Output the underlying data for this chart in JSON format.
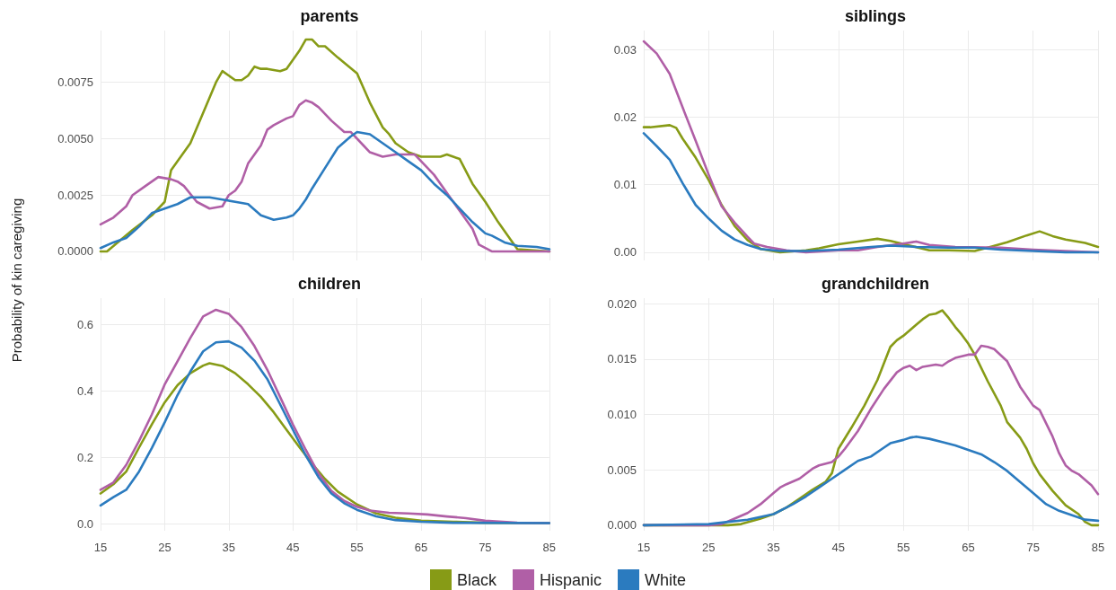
{
  "chart_data": [
    {
      "type": "line",
      "title": "parents",
      "ylabel": "Probability of kin caregiving",
      "legend": "bottom",
      "tick_labels": "y",
      "grid": true,
      "xlim": [
        15,
        85
      ],
      "xticks": [
        15,
        25,
        35,
        45,
        55,
        65,
        75,
        85
      ],
      "ylim": [
        -0.0004,
        0.0098
      ],
      "yticks": [
        {
          "value": 0,
          "label": "0.0000"
        },
        {
          "value": 0.0025,
          "label": "0.0025"
        },
        {
          "value": 0.005,
          "label": "0.0050"
        },
        {
          "value": 0.0075,
          "label": "0.0075"
        }
      ],
      "series": [
        {
          "name": "Black",
          "color": "#879b16",
          "x": [
            15,
            16,
            20,
            23,
            25,
            26,
            29,
            33,
            34,
            36,
            37,
            38,
            39,
            40,
            41,
            43,
            44,
            46,
            47,
            48,
            49,
            50,
            52,
            55,
            57,
            59,
            60,
            61,
            63,
            65,
            66,
            68,
            69,
            70,
            71,
            73,
            75,
            77,
            79,
            80,
            85
          ],
          "values": [
            0,
            0,
            0.00095,
            0.0016,
            0.0022,
            0.0036,
            0.0048,
            0.0075,
            0.008,
            0.0076,
            0.0076,
            0.0078,
            0.0082,
            0.0081,
            0.0081,
            0.008,
            0.0081,
            0.0089,
            0.0094,
            0.0094,
            0.0091,
            0.0091,
            0.0086,
            0.0079,
            0.0066,
            0.0055,
            0.0052,
            0.0048,
            0.0044,
            0.0042,
            0.0042,
            0.0042,
            0.0043,
            0.0042,
            0.0041,
            0.003,
            0.0022,
            0.0013,
            0.0005,
            0.0001,
            0
          ]
        },
        {
          "name": "Hispanic",
          "color": "#b05fa6",
          "x": [
            15,
            17,
            19,
            20,
            22,
            24,
            26,
            27,
            28,
            30,
            32,
            34,
            35,
            36,
            37,
            38,
            40,
            41,
            42,
            44,
            45,
            46,
            47,
            48,
            49,
            50,
            51,
            53,
            54,
            56,
            57,
            59,
            61,
            63,
            64,
            65,
            67,
            69,
            71,
            73,
            74,
            76,
            85
          ],
          "values": [
            0.0012,
            0.0015,
            0.002,
            0.0025,
            0.0029,
            0.0033,
            0.0032,
            0.0031,
            0.0029,
            0.0022,
            0.0019,
            0.002,
            0.0025,
            0.0027,
            0.0031,
            0.0039,
            0.0047,
            0.0054,
            0.0056,
            0.0059,
            0.006,
            0.0065,
            0.0067,
            0.0066,
            0.0064,
            0.0061,
            0.0058,
            0.0053,
            0.0053,
            0.0047,
            0.0044,
            0.0042,
            0.0043,
            0.0043,
            0.0043,
            0.004,
            0.0034,
            0.0026,
            0.0018,
            0.001,
            0.0003,
            0,
            0
          ]
        },
        {
          "name": "White",
          "color": "#2b7bbf",
          "x": [
            15,
            17,
            19,
            21,
            23,
            25,
            27,
            29,
            30,
            32,
            34,
            36,
            38,
            40,
            42,
            44,
            45,
            46,
            47,
            48,
            50,
            52,
            54,
            55,
            57,
            59,
            61,
            63,
            65,
            67,
            69,
            71,
            73,
            75,
            76,
            78,
            80,
            83,
            85
          ],
          "values": [
            0.00015,
            0.0004,
            0.0006,
            0.0011,
            0.0017,
            0.0019,
            0.0021,
            0.0024,
            0.0024,
            0.0024,
            0.0023,
            0.0022,
            0.0021,
            0.0016,
            0.0014,
            0.0015,
            0.0016,
            0.0019,
            0.0023,
            0.0028,
            0.0037,
            0.0046,
            0.0051,
            0.0053,
            0.0052,
            0.0048,
            0.0044,
            0.004,
            0.0036,
            0.003,
            0.0025,
            0.0019,
            0.0013,
            0.0008,
            0.0007,
            0.0004,
            0.00025,
            0.0002,
            0.0001
          ]
        }
      ]
    },
    {
      "type": "line",
      "title": "siblings",
      "legend": "bottom",
      "tick_labels": "y",
      "grid": true,
      "xlim": [
        15,
        85
      ],
      "xticks": [
        15,
        25,
        35,
        45,
        55,
        65,
        75,
        85
      ],
      "ylim": [
        -0.0012,
        0.0328
      ],
      "yticks": [
        {
          "value": 0,
          "label": "0.00"
        },
        {
          "value": 0.01,
          "label": "0.01"
        },
        {
          "value": 0.02,
          "label": "0.02"
        },
        {
          "value": 0.03,
          "label": "0.03"
        }
      ],
      "series": [
        {
          "name": "Black",
          "color": "#879b16",
          "x": [
            15,
            16,
            19,
            20,
            21,
            23,
            25,
            27,
            29,
            31,
            33,
            36,
            40,
            42,
            45,
            48,
            51,
            53,
            56,
            59,
            62,
            66,
            68,
            71,
            74,
            76,
            78,
            80,
            83,
            85
          ],
          "values": [
            0.0185,
            0.0185,
            0.0188,
            0.0184,
            0.0168,
            0.014,
            0.0107,
            0.007,
            0.0039,
            0.0018,
            0.0005,
            0,
            0.0003,
            0.0006,
            0.0012,
            0.0016,
            0.002,
            0.0017,
            0.001,
            0.0003,
            0.0003,
            0.0002,
            0.0007,
            0.0015,
            0.0025,
            0.0031,
            0.0024,
            0.0019,
            0.0014,
            0.0008
          ]
        },
        {
          "name": "Hispanic",
          "color": "#b05fa6",
          "x": [
            15,
            17,
            19,
            21,
            23,
            25,
            27,
            29,
            31,
            32,
            34,
            37,
            40,
            45,
            48,
            51,
            55,
            57,
            59,
            63,
            70,
            75,
            80,
            85
          ],
          "values": [
            0.0312,
            0.0294,
            0.0264,
            0.0214,
            0.0165,
            0.0115,
            0.0068,
            0.0044,
            0.0023,
            0.0013,
            0.0008,
            0.0003,
            0,
            0.0003,
            0.0003,
            0.0008,
            0.0013,
            0.0016,
            0.0011,
            0.0008,
            0.0007,
            0.0004,
            0.0002,
            0
          ]
        },
        {
          "name": "White",
          "color": "#2b7bbf",
          "x": [
            15,
            17,
            19,
            21,
            23,
            25,
            27,
            29,
            31,
            33,
            36,
            40,
            45,
            50,
            53,
            57,
            62,
            66,
            70,
            75,
            80,
            85
          ],
          "values": [
            0.0176,
            0.0157,
            0.0137,
            0.0102,
            0.007,
            0.005,
            0.0032,
            0.0019,
            0.0011,
            0.0005,
            0.0002,
            0.0002,
            0.0004,
            0.0008,
            0.001,
            0.0008,
            0.0007,
            0.0007,
            0.0004,
            0.0002,
            0,
            0
          ]
        }
      ]
    },
    {
      "type": "line",
      "title": "children",
      "legend": "bottom",
      "grid": true,
      "xlim": [
        15,
        85
      ],
      "xticks": [
        15,
        25,
        35,
        45,
        55,
        65,
        75,
        85
      ],
      "ylim": [
        -0.02,
        0.68
      ],
      "yticks": [
        {
          "value": 0,
          "label": "0.0"
        },
        {
          "value": 0.2,
          "label": "0.2"
        },
        {
          "value": 0.4,
          "label": "0.4"
        },
        {
          "value": 0.6,
          "label": "0.6"
        }
      ],
      "series": [
        {
          "name": "Black",
          "color": "#879b16",
          "x": [
            15,
            17,
            19,
            21,
            23,
            25,
            27,
            29,
            31,
            32,
            34,
            36,
            38,
            40,
            42,
            44,
            46,
            48,
            50,
            52,
            55,
            58,
            61,
            65,
            70,
            75,
            85
          ],
          "values": [
            0.092,
            0.12,
            0.158,
            0.23,
            0.3,
            0.366,
            0.418,
            0.454,
            0.477,
            0.484,
            0.476,
            0.454,
            0.421,
            0.383,
            0.337,
            0.284,
            0.232,
            0.182,
            0.136,
            0.098,
            0.059,
            0.032,
            0.019,
            0.01,
            0.007,
            0.004,
            0.003
          ]
        },
        {
          "name": "Hispanic",
          "color": "#b05fa6",
          "x": [
            15,
            17,
            19,
            21,
            23,
            25,
            27,
            29,
            31,
            33,
            35,
            37,
            39,
            41,
            43,
            45,
            47,
            49,
            51,
            53,
            55,
            57,
            60,
            63,
            66,
            69,
            72,
            75,
            80,
            85
          ],
          "values": [
            0.103,
            0.125,
            0.178,
            0.25,
            0.33,
            0.42,
            0.49,
            0.56,
            0.625,
            0.645,
            0.633,
            0.593,
            0.536,
            0.465,
            0.383,
            0.3,
            0.224,
            0.152,
            0.1,
            0.07,
            0.052,
            0.041,
            0.034,
            0.032,
            0.029,
            0.023,
            0.018,
            0.01,
            0.004,
            0.003
          ]
        },
        {
          "name": "White",
          "color": "#2b7bbf",
          "x": [
            15,
            17,
            19,
            21,
            23,
            25,
            27,
            29,
            31,
            33,
            35,
            37,
            39,
            41,
            43,
            45,
            47,
            49,
            51,
            53,
            55,
            58,
            61,
            65,
            70,
            85
          ],
          "values": [
            0.056,
            0.081,
            0.103,
            0.158,
            0.229,
            0.306,
            0.388,
            0.459,
            0.52,
            0.547,
            0.55,
            0.531,
            0.492,
            0.437,
            0.361,
            0.284,
            0.207,
            0.141,
            0.092,
            0.063,
            0.043,
            0.023,
            0.012,
            0.007,
            0.004,
            0.003
          ]
        }
      ]
    },
    {
      "type": "line",
      "title": "grandchildren",
      "legend": "bottom",
      "grid": true,
      "xlim": [
        15,
        85
      ],
      "xticks": [
        15,
        25,
        35,
        45,
        55,
        65,
        75,
        85
      ],
      "ylim": [
        -0.0005,
        0.0205
      ],
      "yticks": [
        {
          "value": 0,
          "label": "0.000"
        },
        {
          "value": 0.005,
          "label": "0.005"
        },
        {
          "value": 0.01,
          "label": "0.010"
        },
        {
          "value": 0.015,
          "label": "0.015"
        },
        {
          "value": 0.02,
          "label": "0.020"
        }
      ],
      "series": [
        {
          "name": "Black",
          "color": "#879b16",
          "x": [
            15,
            25,
            28,
            30,
            33,
            35,
            37,
            39,
            41,
            43,
            44,
            45,
            47,
            49,
            51,
            53,
            54,
            55,
            57,
            58,
            59,
            60,
            61,
            62,
            63,
            64,
            65,
            66,
            68,
            70,
            71,
            73,
            74,
            75,
            76,
            78,
            80,
            82,
            83,
            84,
            85
          ],
          "values": [
            0,
            0,
            0,
            0.0001,
            0.0006,
            0.001,
            0.0016,
            0.0024,
            0.0032,
            0.0039,
            0.0047,
            0.0069,
            0.0088,
            0.0108,
            0.0131,
            0.0161,
            0.0167,
            0.0171,
            0.0181,
            0.0186,
            0.019,
            0.0191,
            0.0194,
            0.0187,
            0.0179,
            0.0172,
            0.0164,
            0.0154,
            0.013,
            0.0108,
            0.0093,
            0.0079,
            0.0069,
            0.0056,
            0.0046,
            0.0031,
            0.0018,
            0.001,
            0.0003,
            0,
            0
          ]
        },
        {
          "name": "Hispanic",
          "color": "#b05fa6",
          "x": [
            15,
            25,
            27,
            29,
            31,
            33,
            35,
            36,
            37,
            39,
            41,
            42,
            44,
            45,
            46,
            48,
            50,
            52,
            54,
            55,
            56,
            57,
            58,
            59,
            60,
            61,
            62,
            63,
            65,
            66,
            67,
            68,
            69,
            71,
            73,
            75,
            76,
            77,
            78,
            79,
            80,
            81,
            82,
            83,
            84,
            85
          ],
          "values": [
            0,
            0,
            0.0001,
            0.0006,
            0.0011,
            0.0019,
            0.0029,
            0.0034,
            0.0037,
            0.0042,
            0.0051,
            0.0054,
            0.0057,
            0.0062,
            0.0069,
            0.0085,
            0.0105,
            0.0123,
            0.0138,
            0.0142,
            0.0144,
            0.014,
            0.0143,
            0.0144,
            0.0145,
            0.0144,
            0.0148,
            0.0151,
            0.0154,
            0.0154,
            0.0162,
            0.0161,
            0.0159,
            0.0148,
            0.0125,
            0.0108,
            0.0104,
            0.0092,
            0.008,
            0.0065,
            0.0054,
            0.0049,
            0.0046,
            0.0041,
            0.0036,
            0.0028
          ]
        },
        {
          "name": "White",
          "color": "#2b7bbf",
          "x": [
            15,
            25,
            28,
            31,
            35,
            38,
            40,
            42,
            44,
            46,
            48,
            50,
            52,
            53,
            55,
            56,
            57,
            59,
            61,
            63,
            65,
            67,
            69,
            71,
            73,
            75,
            77,
            79,
            81,
            83,
            85
          ],
          "values": [
            0,
            0.0001,
            0.0003,
            0.0005,
            0.001,
            0.0019,
            0.0026,
            0.0034,
            0.0042,
            0.005,
            0.0058,
            0.0062,
            0.007,
            0.0074,
            0.0077,
            0.0079,
            0.008,
            0.0078,
            0.0075,
            0.0072,
            0.0068,
            0.0064,
            0.0057,
            0.0049,
            0.0039,
            0.0029,
            0.0019,
            0.0013,
            0.0009,
            0.0005,
            0.0004
          ]
        }
      ]
    }
  ]
}
